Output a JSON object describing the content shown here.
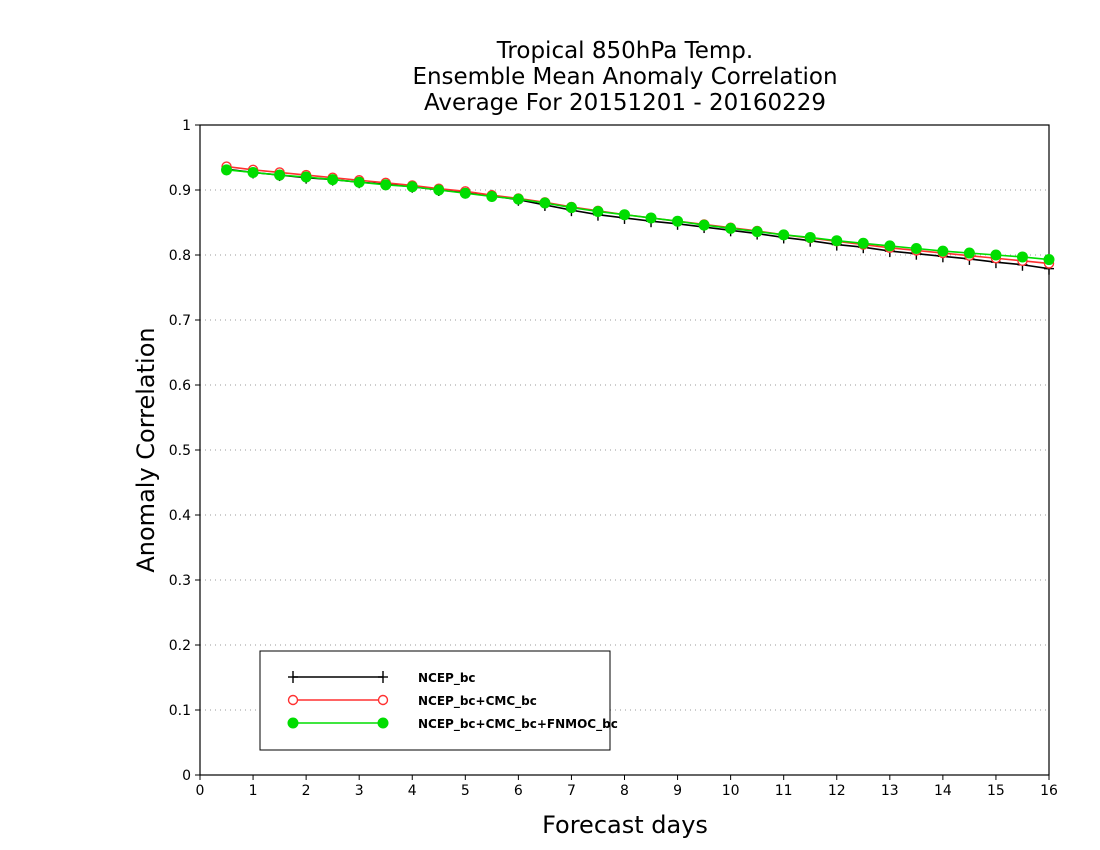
{
  "chart_data": {
    "type": "line",
    "title": [
      "Tropical 850hPa Temp.",
      "Ensemble Mean Anomaly Correlation",
      "Average For 20151201 - 20160229"
    ],
    "xlabel": "Forecast days",
    "ylabel": "Anomaly Correlation",
    "xlim": [
      0,
      16
    ],
    "ylim": [
      0,
      1
    ],
    "xticks": [
      "0",
      "1",
      "2",
      "3",
      "4",
      "5",
      "6",
      "7",
      "8",
      "9",
      "10",
      "11",
      "12",
      "13",
      "14",
      "15",
      "16"
    ],
    "yticks": [
      "0",
      "0.1",
      "0.2",
      "0.3",
      "0.4",
      "0.5",
      "0.6",
      "0.7",
      "0.8",
      "0.9",
      "1"
    ],
    "grid": "horizontal-dotted",
    "legend_position": "bottom-left",
    "x": [
      0.5,
      1,
      1.5,
      2,
      2.5,
      3,
      3.5,
      4,
      4.5,
      5,
      5.5,
      6,
      6.5,
      7,
      7.5,
      8,
      8.5,
      9,
      9.5,
      10,
      10.5,
      11,
      11.5,
      12,
      12.5,
      13,
      13.5,
      14,
      14.5,
      15,
      15.5,
      16
    ],
    "series": [
      {
        "name": "NCEP_bc",
        "color": "#000000",
        "marker": "plus",
        "values": [
          0.932,
          0.927,
          0.923,
          0.919,
          0.916,
          0.912,
          0.909,
          0.905,
          0.9,
          0.896,
          0.891,
          0.885,
          0.877,
          0.869,
          0.862,
          0.857,
          0.852,
          0.848,
          0.843,
          0.838,
          0.833,
          0.827,
          0.822,
          0.816,
          0.812,
          0.806,
          0.802,
          0.798,
          0.794,
          0.789,
          0.785,
          0.779
        ]
      },
      {
        "name": "NCEP_bc+CMC_bc",
        "color": "#ff3030",
        "marker": "open-circle",
        "values": [
          0.936,
          0.931,
          0.927,
          0.923,
          0.919,
          0.915,
          0.911,
          0.907,
          0.902,
          0.898,
          0.892,
          0.887,
          0.881,
          0.874,
          0.868,
          0.862,
          0.857,
          0.852,
          0.847,
          0.842,
          0.837,
          0.831,
          0.826,
          0.821,
          0.816,
          0.811,
          0.807,
          0.803,
          0.799,
          0.795,
          0.791,
          0.787
        ]
      },
      {
        "name": "NCEP_bc+CMC_bc+FNMOC_bc",
        "color": "#00dd00",
        "marker": "filled-circle",
        "values": [
          0.931,
          0.927,
          0.923,
          0.92,
          0.916,
          0.912,
          0.908,
          0.905,
          0.9,
          0.895,
          0.89,
          0.886,
          0.88,
          0.873,
          0.867,
          0.862,
          0.857,
          0.852,
          0.846,
          0.841,
          0.836,
          0.831,
          0.827,
          0.822,
          0.818,
          0.814,
          0.81,
          0.806,
          0.803,
          0.8,
          0.797,
          0.793
        ]
      }
    ]
  }
}
